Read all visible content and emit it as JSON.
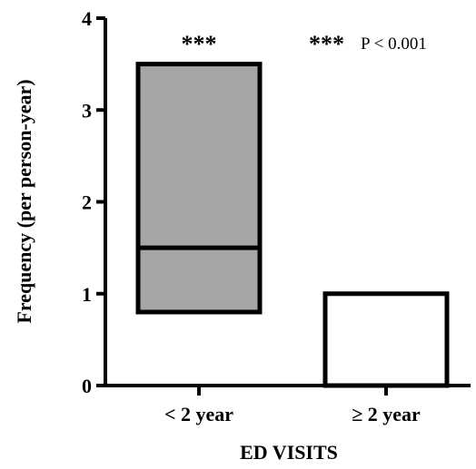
{
  "chart_data": {
    "type": "box",
    "xlabel": "ED VISITS",
    "ylabel": "Frequency (per person-year)",
    "ylim": [
      0,
      4
    ],
    "yticks": [
      0,
      1,
      2,
      3,
      4
    ],
    "grid": false,
    "categories": [
      "< 2 year",
      "≥ 2 year"
    ],
    "boxes": [
      {
        "category": "< 2 year",
        "low": 0.8,
        "high": 3.5,
        "median": 1.5,
        "fill": "#a6a6a6",
        "annotation": "***"
      },
      {
        "category": "≥ 2 year",
        "low": 0.0,
        "high": 1.0,
        "median": 1.0,
        "fill": "#ffffff",
        "annotation": ""
      }
    ],
    "legend_note": {
      "stars": "***",
      "text": "P < 0.001"
    }
  }
}
